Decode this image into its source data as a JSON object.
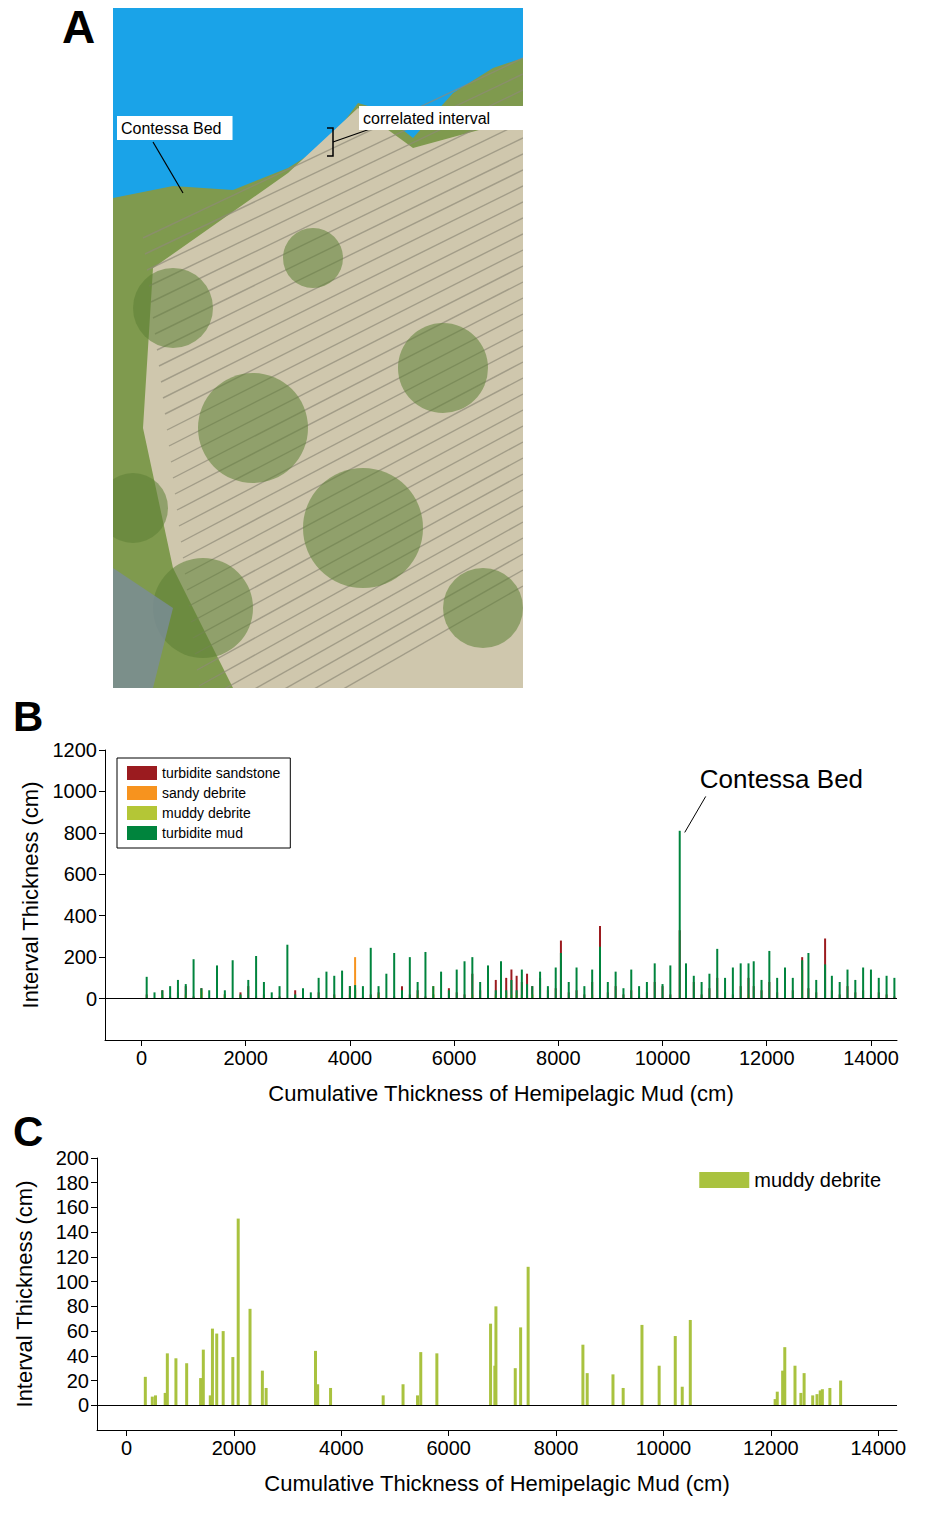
{
  "panels": [
    {
      "label": "A",
      "annotations": [
        "Contessa Bed",
        "correlated interval"
      ]
    }
  ],
  "chart_data": [
    {
      "type": "bar",
      "title": "B",
      "xlabel": "Cumulative Thickness of Hemipelagic Mud (cm)",
      "ylabel": "Interval Thickness (cm)",
      "annotations": [
        {
          "text": "Contessa Bed",
          "x": 10330
        }
      ],
      "x": [
        100,
        250,
        400,
        550,
        700,
        850,
        1000,
        1150,
        1300,
        1450,
        1600,
        1750,
        1900,
        2050,
        2200,
        2350,
        2500,
        2650,
        2800,
        2950,
        3100,
        3250,
        3400,
        3550,
        3700,
        3850,
        4000,
        4100,
        4250,
        4400,
        4550,
        4700,
        4850,
        5000,
        5150,
        5300,
        5450,
        5600,
        5750,
        5900,
        6050,
        6200,
        6350,
        6500,
        6650,
        6800,
        6900,
        7000,
        7100,
        7200,
        7300,
        7400,
        7500,
        7650,
        7800,
        7950,
        8050,
        8200,
        8350,
        8500,
        8650,
        8800,
        8950,
        9100,
        9250,
        9400,
        9550,
        9700,
        9850,
        10000,
        10150,
        10330,
        10450,
        10600,
        10750,
        10900,
        11050,
        11200,
        11350,
        11500,
        11650,
        11750,
        11900,
        12050,
        12200,
        12350,
        12500,
        12680,
        12800,
        12950,
        13120,
        13250,
        13400,
        13550,
        13700,
        13850,
        14000,
        14150,
        14300,
        14450
      ],
      "series": [
        {
          "name": "turbidite sandstone",
          "color": "#9b1b1f",
          "values": [
            20,
            0,
            40,
            10,
            30,
            60,
            10,
            50,
            0,
            40,
            20,
            0,
            30,
            60,
            10,
            20,
            0,
            10,
            0,
            40,
            10,
            0,
            30,
            0,
            20,
            0,
            60,
            40,
            10,
            20,
            30,
            0,
            10,
            60,
            20,
            40,
            10,
            20,
            0,
            50,
            30,
            20,
            120,
            40,
            60,
            90,
            70,
            100,
            140,
            110,
            80,
            120,
            60,
            100,
            40,
            50,
            280,
            30,
            40,
            20,
            80,
            350,
            30,
            60,
            20,
            40,
            10,
            30,
            80,
            60,
            20,
            330,
            40,
            80,
            20,
            50,
            100,
            30,
            20,
            60,
            100,
            60,
            40,
            80,
            30,
            60,
            40,
            200,
            50,
            30,
            290,
            40,
            20,
            60,
            30,
            40,
            20,
            30,
            20,
            10
          ]
        },
        {
          "name": "sandy debrite",
          "color": "#f7931e",
          "values": [
            0,
            0,
            0,
            0,
            0,
            20,
            0,
            30,
            0,
            0,
            20,
            0,
            0,
            0,
            0,
            10,
            0,
            0,
            0,
            0,
            0,
            0,
            0,
            0,
            10,
            0,
            20,
            200,
            0,
            0,
            20,
            0,
            0,
            0,
            0,
            20,
            0,
            60,
            0,
            0,
            0,
            0,
            20,
            0,
            20,
            20,
            10,
            30,
            0,
            30,
            0,
            10,
            20,
            0,
            0,
            0,
            0,
            0,
            0,
            0,
            20,
            0,
            0,
            0,
            0,
            0,
            0,
            0,
            0,
            0,
            0,
            0,
            0,
            0,
            0,
            0,
            0,
            0,
            0,
            0,
            20,
            0,
            0,
            0,
            0,
            0,
            0,
            140,
            0,
            0,
            0,
            0,
            0,
            0,
            0,
            0,
            0,
            0,
            0,
            0
          ]
        },
        {
          "name": "muddy debrite",
          "color": "#b4c636",
          "values": [
            0,
            0,
            20,
            0,
            10,
            0,
            0,
            40,
            0,
            0,
            20,
            0,
            10,
            0,
            0,
            0,
            0,
            0,
            0,
            0,
            0,
            0,
            0,
            0,
            0,
            0,
            20,
            50,
            0,
            0,
            0,
            0,
            0,
            0,
            0,
            0,
            0,
            20,
            0,
            0,
            0,
            0,
            0,
            0,
            0,
            10,
            20,
            0,
            20,
            10,
            20,
            0,
            20,
            0,
            0,
            0,
            0,
            0,
            0,
            0,
            0,
            0,
            0,
            0,
            0,
            0,
            0,
            0,
            0,
            0,
            0,
            0,
            0,
            0,
            0,
            0,
            0,
            0,
            0,
            0,
            0,
            0,
            0,
            0,
            0,
            0,
            0,
            0,
            0,
            0,
            0,
            0,
            0,
            0,
            0,
            0,
            0,
            0,
            0,
            0
          ]
        },
        {
          "name": "turbidite mud",
          "color": "#00843d",
          "values": [
            105,
            30,
            40,
            60,
            90,
            70,
            190,
            50,
            40,
            160,
            40,
            185,
            20,
            90,
            205,
            80,
            30,
            60,
            260,
            20,
            50,
            30,
            100,
            130,
            110,
            135,
            60,
            65,
            60,
            245,
            60,
            120,
            220,
            40,
            200,
            80,
            225,
            60,
            130,
            40,
            140,
            180,
            200,
            80,
            160,
            40,
            180,
            40,
            90,
            40,
            140,
            70,
            60,
            130,
            60,
            150,
            220,
            80,
            150,
            60,
            140,
            250,
            80,
            130,
            50,
            140,
            60,
            80,
            170,
            70,
            160,
            810,
            170,
            110,
            80,
            120,
            240,
            100,
            150,
            170,
            170,
            180,
            90,
            230,
            100,
            150,
            100,
            185,
            220,
            90,
            165,
            110,
            80,
            140,
            90,
            150,
            140,
            100,
            110,
            100
          ]
        }
      ],
      "xlim": [
        -700,
        14500
      ],
      "xticks": [
        0,
        2000,
        4000,
        6000,
        8000,
        10000,
        12000,
        14000
      ],
      "ylim": [
        -200,
        1200
      ],
      "yticks": [
        0,
        200,
        400,
        600,
        800,
        1000,
        1200
      ],
      "stacked": true,
      "legend": "upper left",
      "grid": false
    },
    {
      "type": "bar",
      "title": "C",
      "xlabel": "Cumulative Thickness of Hemipelagic Mud (cm)",
      "ylabel": "Interval Thickness (cm)",
      "x": [
        350,
        480,
        540,
        720,
        760,
        920,
        1120,
        1380,
        1430,
        1560,
        1600,
        1680,
        1800,
        1980,
        2080,
        2300,
        2530,
        2600,
        3520,
        3560,
        3800,
        4780,
        5150,
        5420,
        5480,
        5780,
        6780,
        6860,
        6880,
        7240,
        7340,
        7480,
        8500,
        8580,
        9060,
        9250,
        9600,
        9920,
        10220,
        10350,
        10500,
        12080,
        12120,
        12220,
        12260,
        12450,
        12560,
        12620,
        12780,
        12860,
        12920,
        12960,
        13100,
        13300
      ],
      "series": [
        {
          "name": "muddy debrite",
          "color": "#a9c23f",
          "values": [
            23,
            7,
            8,
            10,
            42,
            38,
            34,
            22,
            45,
            8,
            62,
            58,
            60,
            39,
            151,
            78,
            28,
            14,
            44,
            17,
            14,
            8,
            17,
            8,
            43,
            42,
            66,
            32,
            80,
            30,
            63,
            112,
            49,
            26,
            25,
            14,
            65,
            32,
            56,
            15,
            69,
            5,
            11,
            28,
            47,
            32,
            10,
            26,
            8,
            9,
            12,
            13,
            14,
            20
          ]
        }
      ],
      "xlim": [
        -550,
        14350
      ],
      "xticks": [
        0,
        2000,
        4000,
        6000,
        8000,
        10000,
        12000,
        14000
      ],
      "ylim": [
        -20,
        200
      ],
      "yticks": [
        0,
        20,
        40,
        60,
        80,
        100,
        120,
        140,
        160,
        180,
        200
      ],
      "legend": "upper right",
      "grid": false
    }
  ]
}
